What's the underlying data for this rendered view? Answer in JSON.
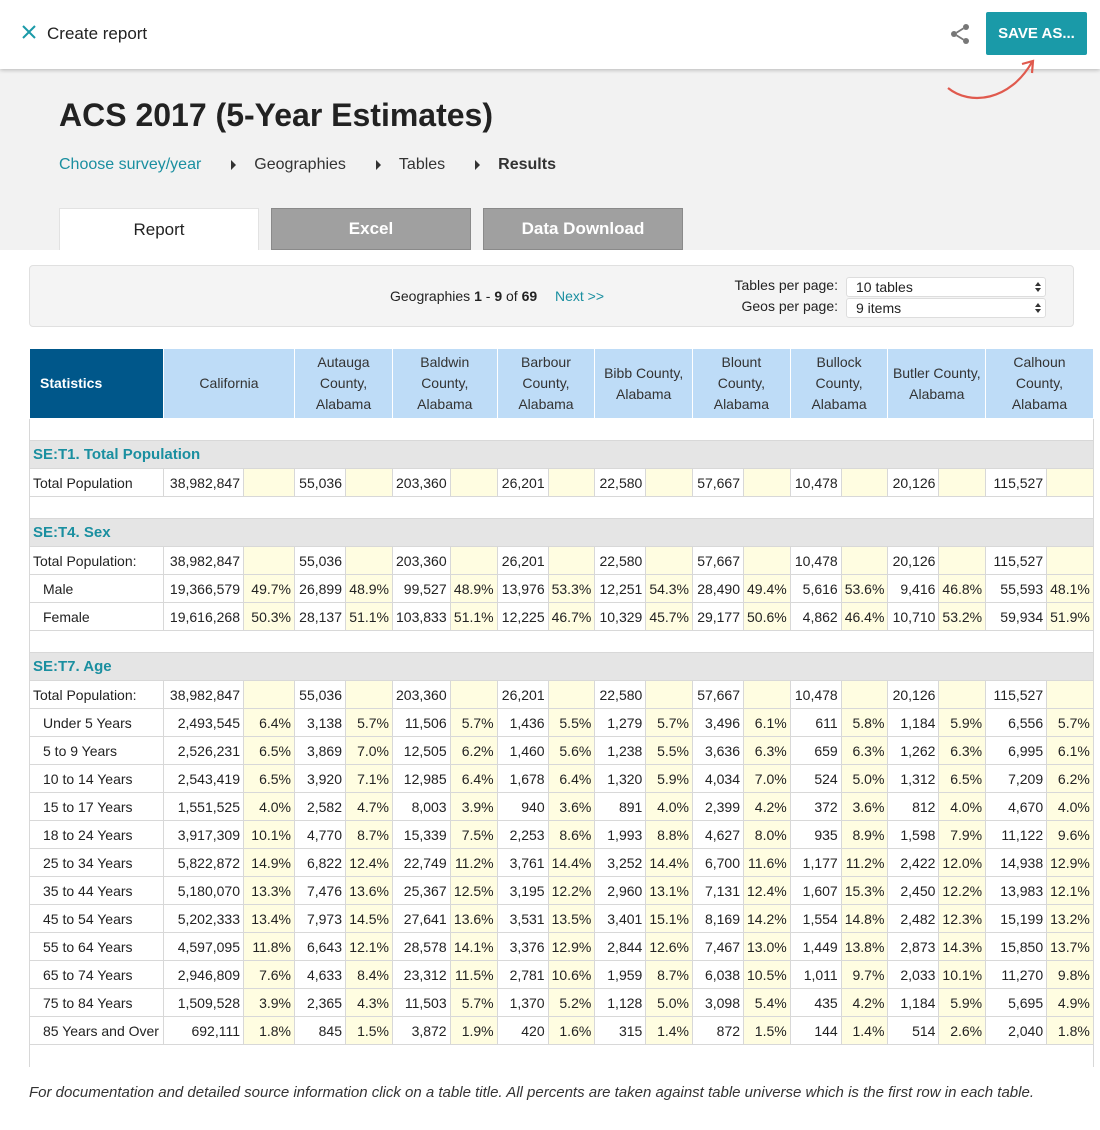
{
  "topbar": {
    "title": "Create report",
    "save_label": "SAVE AS..."
  },
  "hero": {
    "title": "ACS 2017 (5-Year Estimates)",
    "breadcrumbs": [
      "Choose survey/year",
      "Geographies",
      "Tables",
      "Results"
    ]
  },
  "tabs": [
    "Report",
    "Excel",
    "Data Download"
  ],
  "pagination": {
    "range_prefix": "Geographies ",
    "range_start": "1",
    "range_sep": " - ",
    "range_end": "9",
    "range_of": " of ",
    "total": "69",
    "next": "Next >>",
    "tables_label": "Tables per page:",
    "tables_value": "10 tables",
    "geos_label": "Geos per page:",
    "geos_value": "9 items"
  },
  "table": {
    "stat_header": "Statistics",
    "columns": [
      "California",
      "Autauga County, Alabama",
      "Baldwin County, Alabama",
      "Barbour County, Alabama",
      "Bibb County, Alabama",
      "Blount County, Alabama",
      "Bullock County, Alabama",
      "Butler County, Alabama",
      "Calhoun County, Alabama"
    ],
    "sections": [
      {
        "title": "SE:T1. Total Population",
        "rows": [
          {
            "label": "Total Population",
            "indent": false,
            "values": [
              "38,982,847",
              "",
              "55,036",
              "",
              "203,360",
              "",
              "26,201",
              "",
              "22,580",
              "",
              "57,667",
              "",
              "10,478",
              "",
              "20,126",
              "",
              "115,527",
              ""
            ]
          }
        ]
      },
      {
        "title": "SE:T4. Sex",
        "rows": [
          {
            "label": "Total Population:",
            "indent": false,
            "values": [
              "38,982,847",
              "",
              "55,036",
              "",
              "203,360",
              "",
              "26,201",
              "",
              "22,580",
              "",
              "57,667",
              "",
              "10,478",
              "",
              "20,126",
              "",
              "115,527",
              ""
            ]
          },
          {
            "label": "Male",
            "indent": true,
            "values": [
              "19,366,579",
              "49.7%",
              "26,899",
              "48.9%",
              "99,527",
              "48.9%",
              "13,976",
              "53.3%",
              "12,251",
              "54.3%",
              "28,490",
              "49.4%",
              "5,616",
              "53.6%",
              "9,416",
              "46.8%",
              "55,593",
              "48.1%"
            ]
          },
          {
            "label": "Female",
            "indent": true,
            "values": [
              "19,616,268",
              "50.3%",
              "28,137",
              "51.1%",
              "103,833",
              "51.1%",
              "12,225",
              "46.7%",
              "10,329",
              "45.7%",
              "29,177",
              "50.6%",
              "4,862",
              "46.4%",
              "10,710",
              "53.2%",
              "59,934",
              "51.9%"
            ]
          }
        ]
      },
      {
        "title": "SE:T7. Age",
        "rows": [
          {
            "label": "Total Population:",
            "indent": false,
            "values": [
              "38,982,847",
              "",
              "55,036",
              "",
              "203,360",
              "",
              "26,201",
              "",
              "22,580",
              "",
              "57,667",
              "",
              "10,478",
              "",
              "20,126",
              "",
              "115,527",
              ""
            ]
          },
          {
            "label": "Under 5 Years",
            "indent": true,
            "values": [
              "2,493,545",
              "6.4%",
              "3,138",
              "5.7%",
              "11,506",
              "5.7%",
              "1,436",
              "5.5%",
              "1,279",
              "5.7%",
              "3,496",
              "6.1%",
              "611",
              "5.8%",
              "1,184",
              "5.9%",
              "6,556",
              "5.7%"
            ]
          },
          {
            "label": "5 to 9 Years",
            "indent": true,
            "values": [
              "2,526,231",
              "6.5%",
              "3,869",
              "7.0%",
              "12,505",
              "6.2%",
              "1,460",
              "5.6%",
              "1,238",
              "5.5%",
              "3,636",
              "6.3%",
              "659",
              "6.3%",
              "1,262",
              "6.3%",
              "6,995",
              "6.1%"
            ]
          },
          {
            "label": "10 to 14 Years",
            "indent": true,
            "values": [
              "2,543,419",
              "6.5%",
              "3,920",
              "7.1%",
              "12,985",
              "6.4%",
              "1,678",
              "6.4%",
              "1,320",
              "5.9%",
              "4,034",
              "7.0%",
              "524",
              "5.0%",
              "1,312",
              "6.5%",
              "7,209",
              "6.2%"
            ]
          },
          {
            "label": "15 to 17 Years",
            "indent": true,
            "values": [
              "1,551,525",
              "4.0%",
              "2,582",
              "4.7%",
              "8,003",
              "3.9%",
              "940",
              "3.6%",
              "891",
              "4.0%",
              "2,399",
              "4.2%",
              "372",
              "3.6%",
              "812",
              "4.0%",
              "4,670",
              "4.0%"
            ]
          },
          {
            "label": "18 to 24 Years",
            "indent": true,
            "values": [
              "3,917,309",
              "10.1%",
              "4,770",
              "8.7%",
              "15,339",
              "7.5%",
              "2,253",
              "8.6%",
              "1,993",
              "8.8%",
              "4,627",
              "8.0%",
              "935",
              "8.9%",
              "1,598",
              "7.9%",
              "11,122",
              "9.6%"
            ]
          },
          {
            "label": "25 to 34 Years",
            "indent": true,
            "values": [
              "5,822,872",
              "14.9%",
              "6,822",
              "12.4%",
              "22,749",
              "11.2%",
              "3,761",
              "14.4%",
              "3,252",
              "14.4%",
              "6,700",
              "11.6%",
              "1,177",
              "11.2%",
              "2,422",
              "12.0%",
              "14,938",
              "12.9%"
            ]
          },
          {
            "label": "35 to 44 Years",
            "indent": true,
            "values": [
              "5,180,070",
              "13.3%",
              "7,476",
              "13.6%",
              "25,367",
              "12.5%",
              "3,195",
              "12.2%",
              "2,960",
              "13.1%",
              "7,131",
              "12.4%",
              "1,607",
              "15.3%",
              "2,450",
              "12.2%",
              "13,983",
              "12.1%"
            ]
          },
          {
            "label": "45 to 54 Years",
            "indent": true,
            "values": [
              "5,202,333",
              "13.4%",
              "7,973",
              "14.5%",
              "27,641",
              "13.6%",
              "3,531",
              "13.5%",
              "3,401",
              "15.1%",
              "8,169",
              "14.2%",
              "1,554",
              "14.8%",
              "2,482",
              "12.3%",
              "15,199",
              "13.2%"
            ]
          },
          {
            "label": "55 to 64 Years",
            "indent": true,
            "values": [
              "4,597,095",
              "11.8%",
              "6,643",
              "12.1%",
              "28,578",
              "14.1%",
              "3,376",
              "12.9%",
              "2,844",
              "12.6%",
              "7,467",
              "13.0%",
              "1,449",
              "13.8%",
              "2,873",
              "14.3%",
              "15,850",
              "13.7%"
            ]
          },
          {
            "label": "65 to 74 Years",
            "indent": true,
            "values": [
              "2,946,809",
              "7.6%",
              "4,633",
              "8.4%",
              "23,312",
              "11.5%",
              "2,781",
              "10.6%",
              "1,959",
              "8.7%",
              "6,038",
              "10.5%",
              "1,011",
              "9.7%",
              "2,033",
              "10.1%",
              "11,270",
              "9.8%"
            ]
          },
          {
            "label": "75 to 84 Years",
            "indent": true,
            "values": [
              "1,509,528",
              "3.9%",
              "2,365",
              "4.3%",
              "11,503",
              "5.7%",
              "1,370",
              "5.2%",
              "1,128",
              "5.0%",
              "3,098",
              "5.4%",
              "435",
              "4.2%",
              "1,184",
              "5.9%",
              "5,695",
              "4.9%"
            ]
          },
          {
            "label": "85 Years and Over",
            "indent": true,
            "values": [
              "692,111",
              "1.8%",
              "845",
              "1.5%",
              "3,872",
              "1.9%",
              "420",
              "1.6%",
              "315",
              "1.4%",
              "872",
              "1.5%",
              "144",
              "1.4%",
              "514",
              "2.6%",
              "2,040",
              "1.8%"
            ]
          }
        ]
      }
    ]
  },
  "footnote": "For documentation and detailed source information click on a table title.  All percents are taken against table universe which is the first row in each table.",
  "colors": {
    "accent": "#1a9aa8",
    "header_dark": "#00578a",
    "header_light": "#bedcf7",
    "pct_bg": "#fffde1"
  }
}
